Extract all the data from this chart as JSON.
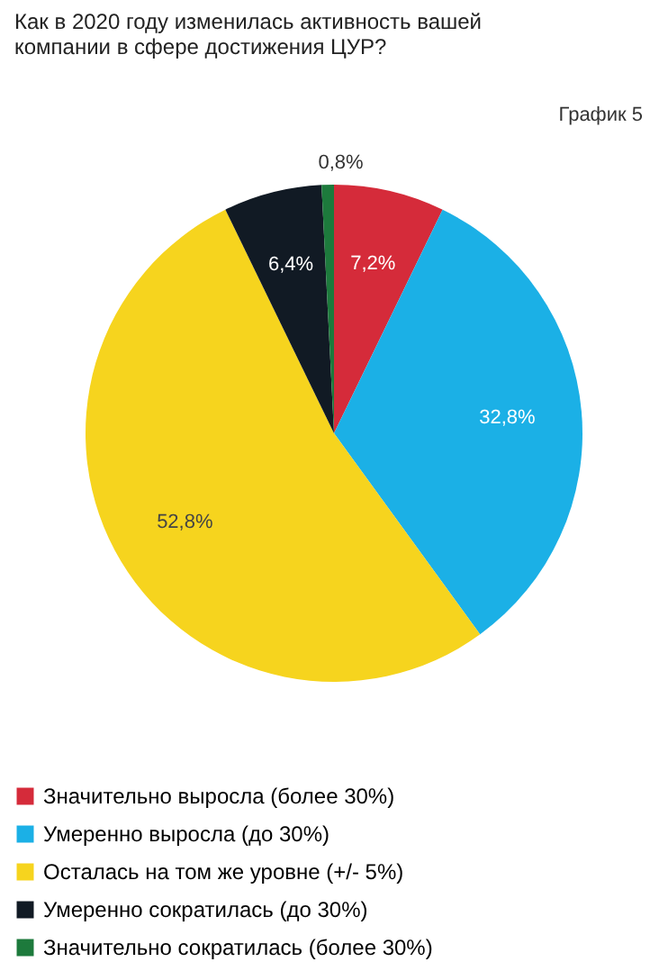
{
  "chart_data": {
    "type": "pie",
    "title": "Как в 2020 году изменилась активность вашей компании в сфере достижения ЦУР?",
    "annotations": [
      "График 5"
    ],
    "categories": [
      "Значительно выросла (более 30%)",
      "Умеренно выросла (до 30%)",
      "Осталась на том же уровне (+/- 5%)",
      "Умеренно сократилась (до 30%)",
      "Значительно сократилась (более 30%)"
    ],
    "values": [
      7.2,
      32.8,
      52.8,
      6.4,
      0.8
    ],
    "colors": [
      "#d52b3a",
      "#1bb0e6",
      "#f6d41e",
      "#111a24",
      "#1d7a3c"
    ],
    "value_labels": [
      "7,2%",
      "32,8%",
      "52,8%",
      "6,4%",
      "0,8%"
    ],
    "legend": "bottom"
  }
}
